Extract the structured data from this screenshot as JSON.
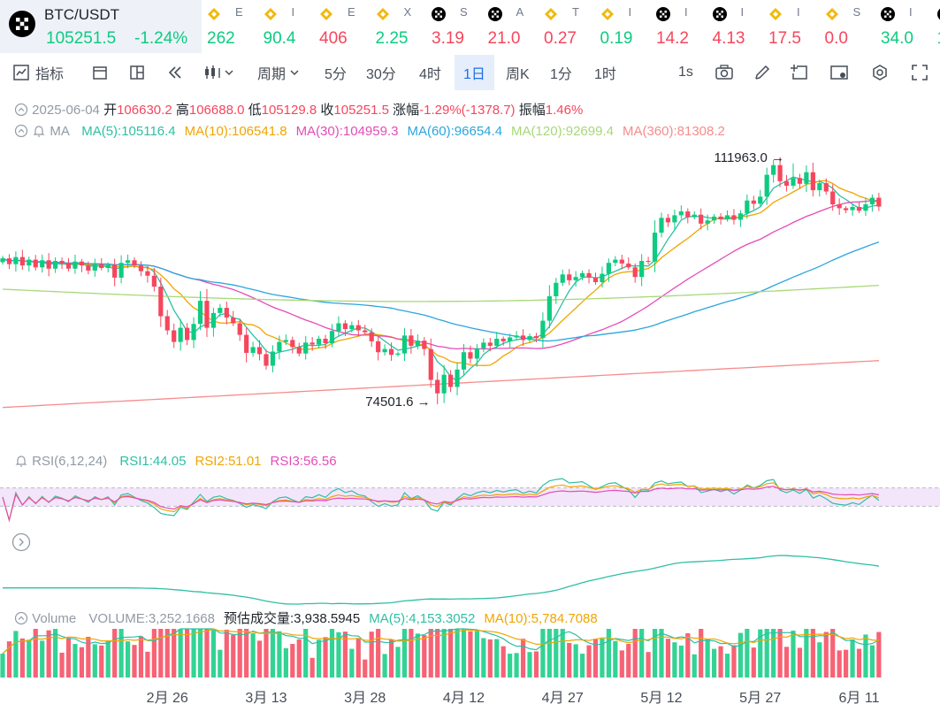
{
  "ticker": {
    "main": {
      "symbol": "BTC/USDT",
      "price": "105251.5",
      "change": "-1.24%"
    },
    "items": [
      {
        "icon": "bnb-icon",
        "name": "E",
        "price": "262",
        "dir": "up"
      },
      {
        "icon": "bnb-icon",
        "name": "I",
        "price": "90.4",
        "dir": "up"
      },
      {
        "icon": "bnb-icon",
        "name": "E",
        "price": "406",
        "dir": "dn"
      },
      {
        "icon": "bnb-icon",
        "name": "X",
        "price": "2.25",
        "dir": "up"
      },
      {
        "icon": "okx-icon",
        "name": "S",
        "price": "3.19",
        "dir": "dn"
      },
      {
        "icon": "okx-icon",
        "name": "A",
        "price": "21.0",
        "dir": "dn"
      },
      {
        "icon": "bnb-icon",
        "name": "T",
        "price": "0.27",
        "dir": "dn"
      },
      {
        "icon": "bnb-icon",
        "name": "I",
        "price": "0.19",
        "dir": "up"
      },
      {
        "icon": "okx-icon",
        "name": "I",
        "price": "14.2",
        "dir": "dn"
      },
      {
        "icon": "okx-icon",
        "name": "I",
        "price": "4.13",
        "dir": "dn"
      },
      {
        "icon": "bnb-icon",
        "name": "I",
        "price": "17.5",
        "dir": "dn"
      },
      {
        "icon": "bnb-icon",
        "name": "S",
        "price": "0.0",
        "dir": "dn"
      },
      {
        "icon": "okx-icon",
        "name": "I",
        "price": "34.0",
        "dir": "up"
      },
      {
        "icon": "okx-icon",
        "name": "",
        "price": "1",
        "dir": "up"
      }
    ]
  },
  "toolbar": {
    "indicators": "指标",
    "period": "周期",
    "intervals": [
      "5分",
      "30分",
      "4时",
      "1日",
      "周K",
      "1分",
      "1时"
    ],
    "active_interval": "1日",
    "refresh": "1s"
  },
  "ohlc": {
    "date": "2025-06-04",
    "open_label": "开",
    "open": "106630.2",
    "high_label": "高",
    "high": "106688.0",
    "low_label": "低",
    "low": "105129.8",
    "close_label": "收",
    "close": "105251.5",
    "change_label": "涨幅",
    "change": "-1.29%(-1378.7)",
    "amp_label": "振幅",
    "amp": "1.46%"
  },
  "ma_legend": {
    "label": "MA",
    "items": [
      {
        "text": "MA(5):105116.4",
        "color": "#2ebfa5"
      },
      {
        "text": "MA(10):106541.8",
        "color": "#f0a500"
      },
      {
        "text": "MA(30):104959.3",
        "color": "#e44cb8"
      },
      {
        "text": "MA(60):96654.4",
        "color": "#2aa6dd"
      },
      {
        "text": "MA(120):92699.4",
        "color": "#a8d878"
      },
      {
        "text": "MA(360):81308.2",
        "color": "#f58c8c"
      }
    ]
  },
  "annotations": {
    "high": "111963.0",
    "low": "74501.6"
  },
  "rsi_legend": {
    "label": "RSI(6,12,24)",
    "items": [
      {
        "text": "RSI1:44.05",
        "color": "#2ebfa5"
      },
      {
        "text": "RSI2:51.01",
        "color": "#f0a500"
      },
      {
        "text": "RSI3:56.56",
        "color": "#e44cb8"
      }
    ]
  },
  "volume_legend": {
    "label": "Volume",
    "items": [
      {
        "text": "VOLUME:3,252.1668",
        "color": "#929aa5"
      },
      {
        "text": "预估成交量:3,938.5945",
        "color": "#1e2329"
      },
      {
        "text": "MA(5):4,153.3052",
        "color": "#2ebfa5"
      },
      {
        "text": "MA(10):5,784.7088",
        "color": "#f0a500"
      }
    ]
  },
  "x_labels": [
    "2月 26",
    "3月 13",
    "3月 28",
    "4月 12",
    "4月 27",
    "5月 12",
    "5月 27",
    "6月 11"
  ],
  "colors": {
    "up": "#0ecb81",
    "down": "#f6465d",
    "accent": "#1e6fe5"
  },
  "chart_data": {
    "type": "candlestick",
    "period": "1D",
    "price_range": [
      73000,
      114000
    ],
    "candles": [
      {
        "o": 96600,
        "c": 97200
      },
      {
        "o": 97200,
        "c": 96300
      },
      {
        "o": 96300,
        "c": 97400
      },
      {
        "o": 97400,
        "c": 96100
      },
      {
        "o": 96100,
        "c": 97000
      },
      {
        "o": 97000,
        "c": 95800
      },
      {
        "o": 95800,
        "c": 96900
      },
      {
        "o": 96900,
        "c": 95600
      },
      {
        "o": 95600,
        "c": 96800
      },
      {
        "o": 96800,
        "c": 96400
      },
      {
        "o": 96400,
        "c": 95600
      },
      {
        "o": 95600,
        "c": 96700
      },
      {
        "o": 96700,
        "c": 96100
      },
      {
        "o": 96100,
        "c": 95300
      },
      {
        "o": 95300,
        "c": 96300
      },
      {
        "o": 96300,
        "c": 95700
      },
      {
        "o": 95700,
        "c": 96200
      },
      {
        "o": 96200,
        "c": 94200
      },
      {
        "o": 94200,
        "c": 96500
      },
      {
        "o": 96500,
        "c": 96900
      },
      {
        "o": 96900,
        "c": 96100
      },
      {
        "o": 96100,
        "c": 95200
      },
      {
        "o": 95200,
        "c": 94500
      },
      {
        "o": 94500,
        "c": 92800
      },
      {
        "o": 92800,
        "c": 88200
      },
      {
        "o": 88200,
        "c": 86000
      },
      {
        "o": 86000,
        "c": 84200
      },
      {
        "o": 84200,
        "c": 86400
      },
      {
        "o": 86400,
        "c": 84500
      },
      {
        "o": 84500,
        "c": 87000
      },
      {
        "o": 87000,
        "c": 90600
      },
      {
        "o": 90600,
        "c": 86400
      },
      {
        "o": 86400,
        "c": 88700
      },
      {
        "o": 88700,
        "c": 89500
      },
      {
        "o": 89500,
        "c": 88000
      },
      {
        "o": 88000,
        "c": 87100
      },
      {
        "o": 87100,
        "c": 85300
      },
      {
        "o": 85300,
        "c": 82500
      },
      {
        "o": 82500,
        "c": 83400
      },
      {
        "o": 83400,
        "c": 82300
      },
      {
        "o": 82300,
        "c": 80500
      },
      {
        "o": 80500,
        "c": 82700
      },
      {
        "o": 82700,
        "c": 84200
      },
      {
        "o": 84200,
        "c": 84500
      },
      {
        "o": 84500,
        "c": 83400
      },
      {
        "o": 83400,
        "c": 82400
      },
      {
        "o": 82400,
        "c": 84100
      },
      {
        "o": 84100,
        "c": 83800
      },
      {
        "o": 83800,
        "c": 84700
      },
      {
        "o": 84700,
        "c": 84000
      },
      {
        "o": 84000,
        "c": 85900
      },
      {
        "o": 85900,
        "c": 87100
      },
      {
        "o": 87100,
        "c": 86200
      },
      {
        "o": 86200,
        "c": 86800
      },
      {
        "o": 86800,
        "c": 86000
      },
      {
        "o": 86000,
        "c": 85700
      },
      {
        "o": 85700,
        "c": 84300
      },
      {
        "o": 84300,
        "c": 82600
      },
      {
        "o": 82600,
        "c": 83100
      },
      {
        "o": 83100,
        "c": 82200
      },
      {
        "o": 82200,
        "c": 82400
      },
      {
        "o": 82400,
        "c": 85200
      },
      {
        "o": 85200,
        "c": 83600
      },
      {
        "o": 83600,
        "c": 84400
      },
      {
        "o": 84400,
        "c": 83100
      },
      {
        "o": 83100,
        "c": 78300
      },
      {
        "o": 78300,
        "c": 76200
      },
      {
        "o": 76200,
        "c": 79100
      },
      {
        "o": 79100,
        "c": 77200
      },
      {
        "o": 77200,
        "c": 79900
      },
      {
        "o": 79900,
        "c": 82600
      },
      {
        "o": 82600,
        "c": 81600
      },
      {
        "o": 81600,
        "c": 83200
      },
      {
        "o": 83200,
        "c": 84100
      },
      {
        "o": 84100,
        "c": 83600
      },
      {
        "o": 83600,
        "c": 84700
      },
      {
        "o": 84700,
        "c": 84300
      },
      {
        "o": 84300,
        "c": 84900
      },
      {
        "o": 84900,
        "c": 85200
      },
      {
        "o": 85200,
        "c": 84500
      },
      {
        "o": 84500,
        "c": 85100
      },
      {
        "o": 85100,
        "c": 84800
      },
      {
        "o": 84800,
        "c": 87500
      },
      {
        "o": 87500,
        "c": 91300
      },
      {
        "o": 91300,
        "c": 93400
      },
      {
        "o": 93400,
        "c": 94700
      },
      {
        "o": 94700,
        "c": 93800
      },
      {
        "o": 93800,
        "c": 94300
      },
      {
        "o": 94300,
        "c": 94900
      },
      {
        "o": 94900,
        "c": 94200
      },
      {
        "o": 94200,
        "c": 93500
      },
      {
        "o": 93500,
        "c": 94800
      },
      {
        "o": 94800,
        "c": 96500
      },
      {
        "o": 96500,
        "c": 97000
      },
      {
        "o": 97000,
        "c": 96400
      },
      {
        "o": 96400,
        "c": 95800
      },
      {
        "o": 95800,
        "c": 94300
      },
      {
        "o": 94300,
        "c": 96800
      },
      {
        "o": 96800,
        "c": 96700
      },
      {
        "o": 96700,
        "c": 101200
      },
      {
        "o": 101200,
        "c": 103500
      },
      {
        "o": 103500,
        "c": 102800
      },
      {
        "o": 102800,
        "c": 103900
      },
      {
        "o": 103900,
        "c": 104500
      },
      {
        "o": 104500,
        "c": 103600
      },
      {
        "o": 103600,
        "c": 104000
      },
      {
        "o": 104000,
        "c": 102600
      },
      {
        "o": 102600,
        "c": 103100
      },
      {
        "o": 103100,
        "c": 103700
      },
      {
        "o": 103700,
        "c": 103300
      },
      {
        "o": 103300,
        "c": 103900
      },
      {
        "o": 103900,
        "c": 103200
      },
      {
        "o": 103200,
        "c": 104200
      },
      {
        "o": 104200,
        "c": 106200
      },
      {
        "o": 106200,
        "c": 105700
      },
      {
        "o": 105700,
        "c": 106800
      },
      {
        "o": 106800,
        "c": 110200
      },
      {
        "o": 110200,
        "c": 111700
      },
      {
        "o": 111700,
        "c": 109200
      },
      {
        "o": 109200,
        "c": 108500
      },
      {
        "o": 108500,
        "c": 109700
      },
      {
        "o": 109700,
        "c": 108800
      },
      {
        "o": 108800,
        "c": 110600
      },
      {
        "o": 110600,
        "c": 107800
      },
      {
        "o": 107800,
        "c": 108900
      },
      {
        "o": 108900,
        "c": 107600
      },
      {
        "o": 107600,
        "c": 105600
      },
      {
        "o": 105600,
        "c": 105000
      },
      {
        "o": 105000,
        "c": 104700
      },
      {
        "o": 104700,
        "c": 105200
      },
      {
        "o": 105200,
        "c": 104600
      },
      {
        "o": 104600,
        "c": 105600
      },
      {
        "o": 105600,
        "c": 106630
      },
      {
        "o": 106630,
        "c": 105251
      }
    ]
  }
}
